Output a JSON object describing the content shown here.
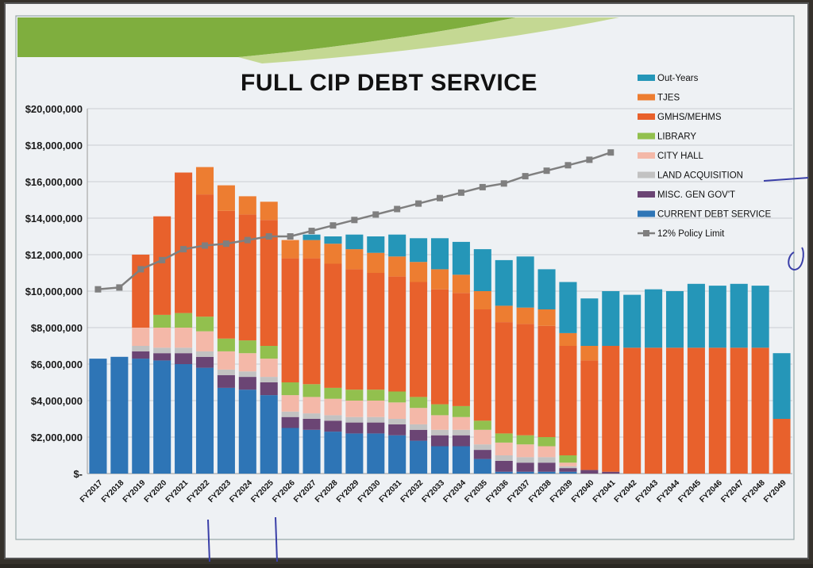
{
  "chart_data": {
    "type": "bar",
    "stacked": true,
    "title": "FULL CIP DEBT SERVICE",
    "ylim": [
      0,
      20000000
    ],
    "yticks": [
      0,
      2000000,
      4000000,
      6000000,
      8000000,
      10000000,
      12000000,
      14000000,
      16000000,
      18000000,
      20000000
    ],
    "ytick_labels": [
      "$-",
      "$2,000,000",
      "$4,000,000",
      "$6,000,000",
      "$8,000,000",
      "$10,000,000",
      "$12,000,000",
      "$14,000,000",
      "$16,000,000",
      "$18,000,000",
      "$20,000,000"
    ],
    "grid": true,
    "legend_position": "top-right",
    "categories": [
      "FY2017",
      "FY2018",
      "FY2019",
      "FY2020",
      "FY2021",
      "FY2022",
      "FY2023",
      "FY2024",
      "FY2025",
      "FY2026",
      "FY2027",
      "FY2028",
      "FY2029",
      "FY2030",
      "FY2031",
      "FY2032",
      "FY2033",
      "FY2034",
      "FY2035",
      "FY2036",
      "FY2037",
      "FY2038",
      "FY2039",
      "FY2040",
      "FY2041",
      "FY2042",
      "FY2043",
      "FY2044",
      "FY2045",
      "FY2046",
      "FY2047",
      "FY2048",
      "FY2049"
    ],
    "series": [
      {
        "name": "CURRENT DEBT SERVICE",
        "color": "#2e75b6",
        "values": [
          6300000,
          6400000,
          6300000,
          6200000,
          6000000,
          5800000,
          4700000,
          4600000,
          4300000,
          2500000,
          2400000,
          2300000,
          2200000,
          2200000,
          2100000,
          1800000,
          1500000,
          1500000,
          800000,
          100000,
          100000,
          100000,
          100000,
          0,
          0,
          0,
          0,
          0,
          0,
          0,
          0,
          0,
          0
        ]
      },
      {
        "name": "MISC. GEN GOV'T",
        "color": "#6b4574",
        "values": [
          0,
          0,
          400000,
          400000,
          600000,
          600000,
          700000,
          700000,
          700000,
          600000,
          600000,
          600000,
          600000,
          600000,
          600000,
          600000,
          600000,
          600000,
          500000,
          600000,
          500000,
          500000,
          200000,
          200000,
          100000,
          0,
          0,
          0,
          0,
          0,
          0,
          0,
          0
        ]
      },
      {
        "name": "LAND ACQUISITION",
        "color": "#c2c2c2",
        "values": [
          0,
          0,
          300000,
          300000,
          300000,
          300000,
          300000,
          300000,
          300000,
          300000,
          300000,
          300000,
          300000,
          300000,
          300000,
          300000,
          300000,
          300000,
          300000,
          300000,
          300000,
          300000,
          100000,
          0,
          0,
          0,
          0,
          0,
          0,
          0,
          0,
          0,
          0
        ]
      },
      {
        "name": "CITY HALL",
        "color": "#f4b8a8",
        "values": [
          0,
          0,
          1000000,
          1100000,
          1100000,
          1100000,
          1000000,
          1000000,
          1000000,
          900000,
          900000,
          900000,
          900000,
          900000,
          900000,
          900000,
          800000,
          700000,
          800000,
          700000,
          700000,
          600000,
          200000,
          0,
          0,
          0,
          0,
          0,
          0,
          0,
          0,
          0,
          0
        ]
      },
      {
        "name": "LIBRARY",
        "color": "#92c04e",
        "values": [
          0,
          0,
          0,
          700000,
          800000,
          800000,
          700000,
          700000,
          700000,
          700000,
          700000,
          600000,
          600000,
          600000,
          600000,
          600000,
          600000,
          600000,
          500000,
          500000,
          500000,
          500000,
          400000,
          0,
          0,
          0,
          0,
          0,
          0,
          0,
          0,
          0,
          0
        ]
      },
      {
        "name": "GMHS/MEHMS",
        "color": "#e8612c",
        "values": [
          0,
          0,
          4000000,
          5400000,
          7700000,
          6700000,
          7000000,
          6900000,
          6900000,
          6800000,
          6900000,
          6800000,
          6600000,
          6400000,
          6300000,
          6300000,
          6300000,
          6200000,
          6100000,
          6100000,
          6100000,
          6100000,
          6000000,
          6000000,
          6900000,
          6900000,
          6900000,
          6900000,
          6900000,
          6900000,
          6900000,
          6900000,
          3000000
        ]
      },
      {
        "name": "TJES",
        "color": "#ed7d31",
        "values": [
          0,
          0,
          0,
          0,
          0,
          1500000,
          1400000,
          1000000,
          1000000,
          1000000,
          1000000,
          1100000,
          1100000,
          1100000,
          1100000,
          1100000,
          1100000,
          1000000,
          1000000,
          900000,
          900000,
          900000,
          700000,
          800000,
          0,
          0,
          0,
          0,
          0,
          0,
          0,
          0,
          0
        ]
      },
      {
        "name": "Out-Years",
        "color": "#2596b8",
        "values": [
          0,
          0,
          0,
          0,
          0,
          0,
          0,
          0,
          0,
          0,
          300000,
          400000,
          800000,
          900000,
          1200000,
          1300000,
          1700000,
          1800000,
          2300000,
          2500000,
          2800000,
          2200000,
          2800000,
          2600000,
          3000000,
          2900000,
          3200000,
          3100000,
          3500000,
          3400000,
          3500000,
          3400000,
          3600000
        ]
      }
    ],
    "line_series": {
      "name": "12% Policy Limit",
      "color": "#7f7f7f",
      "values": [
        10100000,
        10200000,
        11200000,
        11700000,
        12300000,
        12500000,
        12600000,
        12800000,
        13000000,
        13000000,
        13300000,
        13600000,
        13900000,
        14200000,
        14500000,
        14800000,
        15100000,
        15400000,
        15700000,
        15900000,
        16300000,
        16600000,
        16900000,
        17200000,
        17600000,
        null,
        null,
        null,
        null,
        null,
        null,
        null,
        null
      ]
    },
    "legend_order": [
      "Out-Years",
      "TJES",
      "GMHS/MEHMS",
      "LIBRARY",
      "CITY HALL",
      "LAND ACQUISITION",
      "MISC. GEN GOV'T",
      "CURRENT DEBT SERVICE",
      "12% Policy Limit"
    ]
  }
}
